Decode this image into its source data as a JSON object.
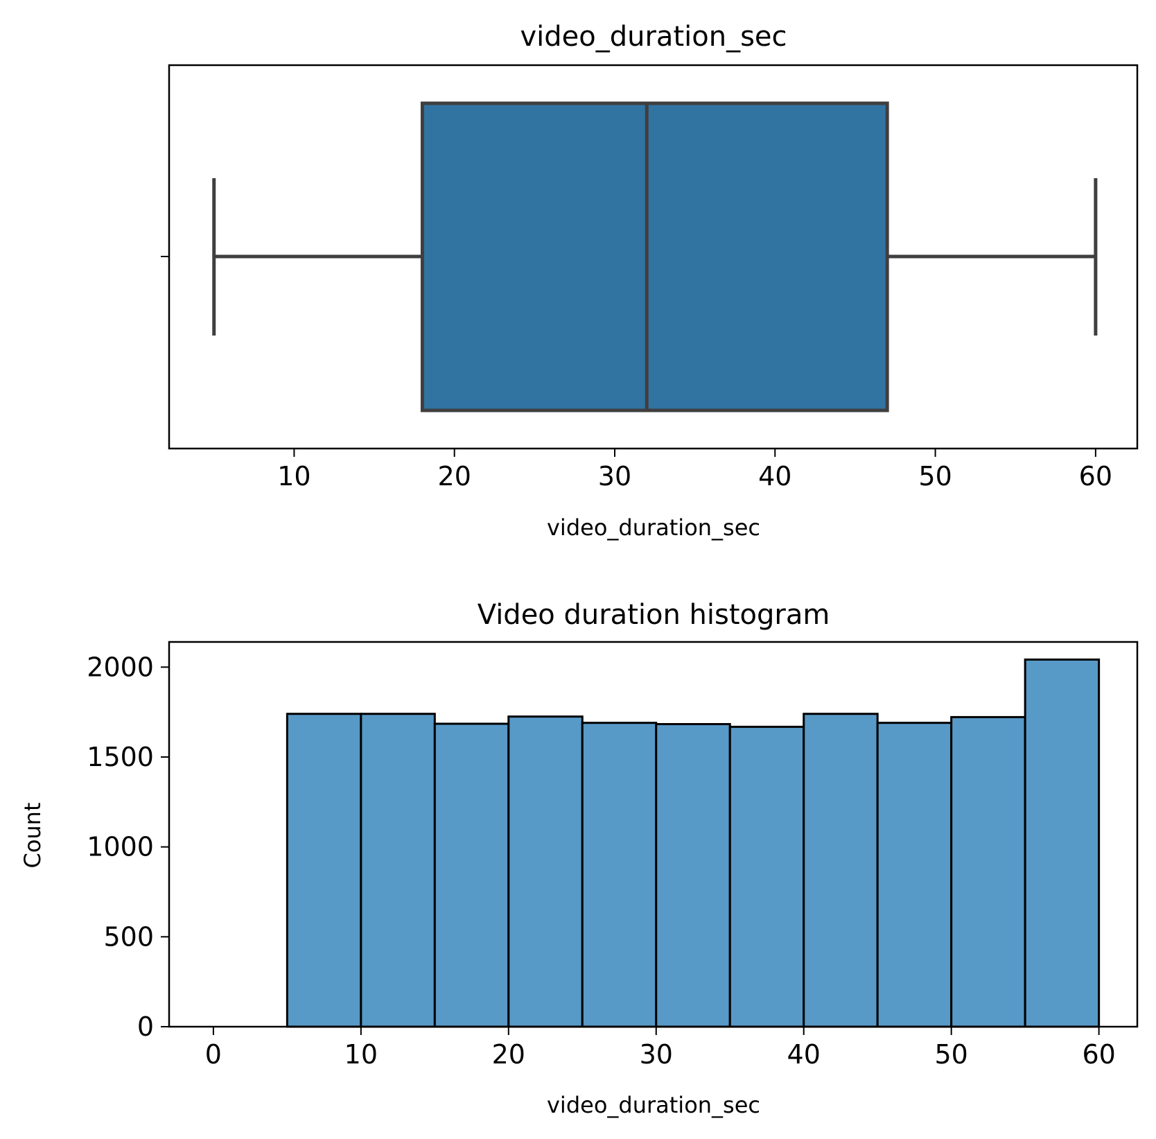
{
  "chart_data": [
    {
      "type": "box",
      "title": "video_duration_sec",
      "xlabel": "video_duration_sec",
      "ylabel": "",
      "xlim": [
        2.2,
        62.6
      ],
      "xticks": [
        10,
        20,
        30,
        40,
        50,
        60
      ],
      "stats": {
        "whisker_low": 5,
        "q1": 18,
        "median": 32,
        "q3": 47,
        "whisker_high": 60
      },
      "colors": {
        "box": "#3274a1",
        "line": "#3f3f3f"
      },
      "grid": false
    },
    {
      "type": "histogram",
      "title": "Video duration histogram",
      "xlabel": "video_duration_sec",
      "ylabel": "Count",
      "xlim": [
        -3,
        62.6
      ],
      "ylim": [
        0,
        2140
      ],
      "xticks": [
        0,
        10,
        20,
        30,
        40,
        50,
        60
      ],
      "yticks": [
        0,
        500,
        1000,
        1500,
        2000
      ],
      "bin_edges": [
        0,
        5,
        10,
        15,
        20,
        25,
        30,
        35,
        40,
        45,
        50,
        55,
        60
      ],
      "counts": [
        0,
        1740,
        1740,
        1685,
        1725,
        1690,
        1683,
        1668,
        1740,
        1690,
        1722,
        2042
      ],
      "colors": {
        "bar": "#5799c7",
        "edge": "#000000"
      },
      "grid": false
    }
  ]
}
